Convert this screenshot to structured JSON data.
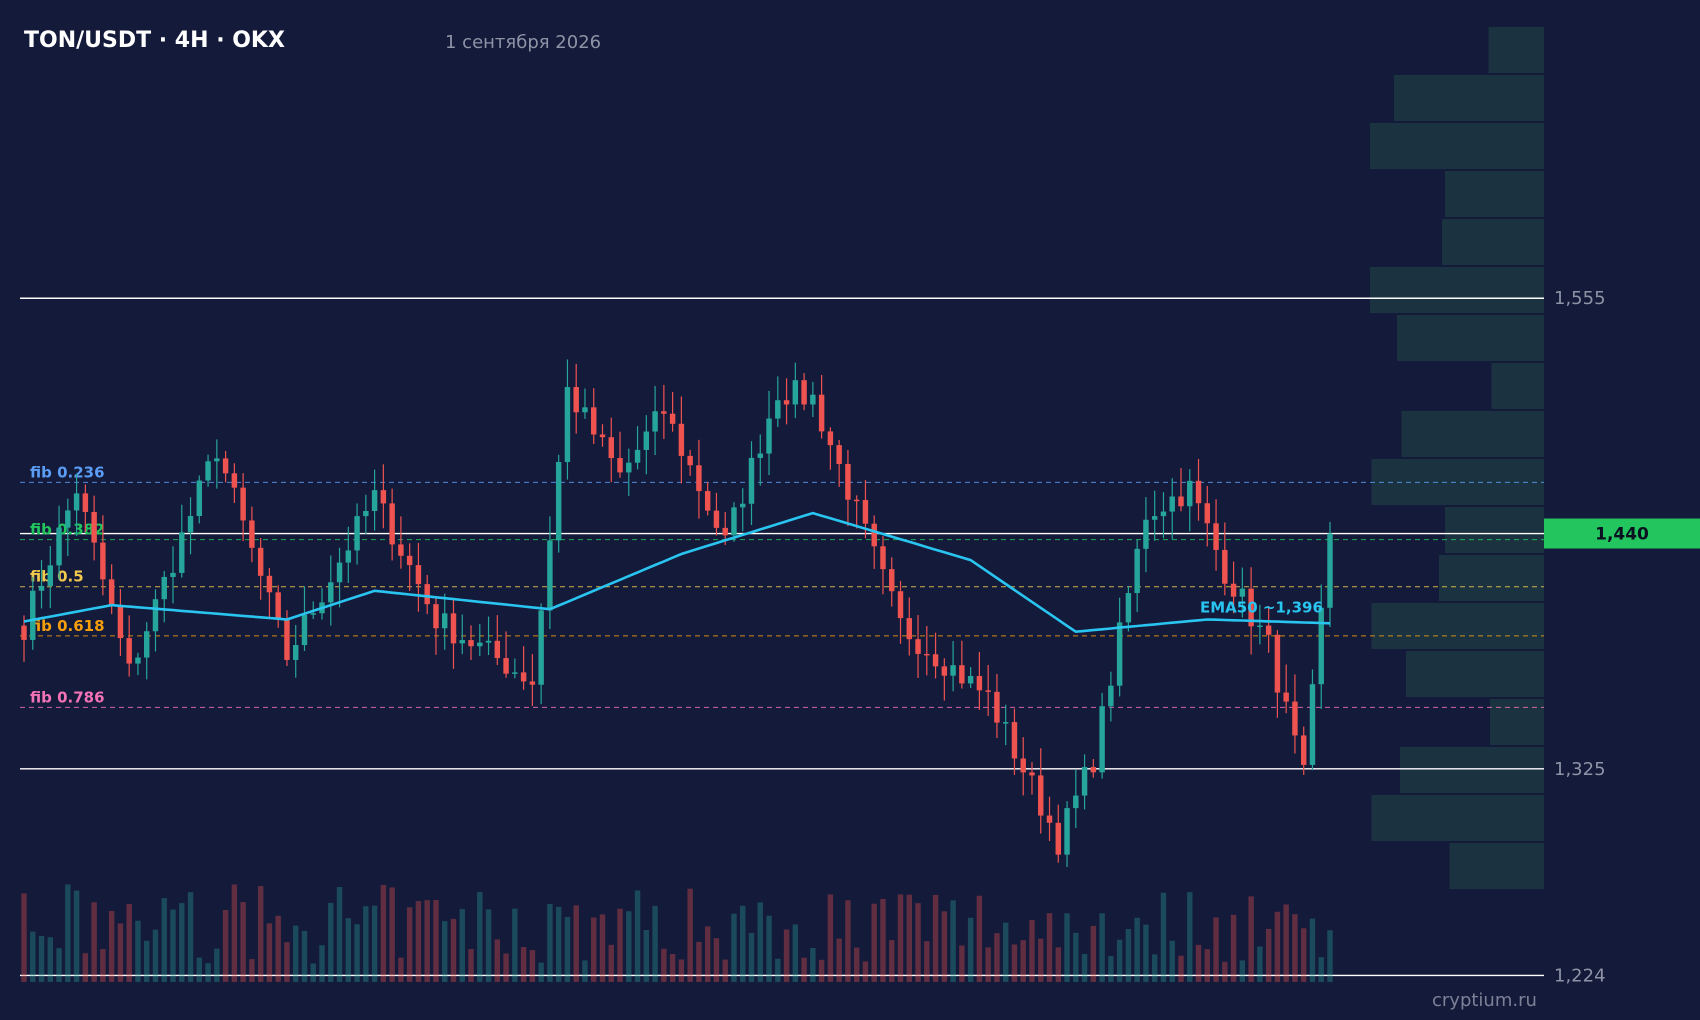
{
  "header": {
    "title": "TON/USDT · 4H · OKX",
    "date": "1 сентября 2026"
  },
  "watermark": "cryptium.ru",
  "colors": {
    "background": "#141a3a",
    "bull": "#26a69a",
    "bear": "#ef5350",
    "ema": "#29c5f0",
    "price_tag": "#22c55e",
    "fib_0236": "#5b9cf5",
    "fib_0382": "#22c55e",
    "fib_05": "#f2c94c",
    "fib_0618": "#f59e0b",
    "fib_0786": "#f472b6",
    "volume_profile": "#1b3340",
    "level_line": "#ffffff"
  },
  "chart_data": {
    "type": "candlestick",
    "title": "TON/USDT · 4H · OKX",
    "subtitle": "1 сентября 2026",
    "y_tick_labels": [
      "1,555",
      "1,325",
      "1,224"
    ],
    "y_ticks": [
      1.555,
      1.325,
      1.224
    ],
    "ylim": [
      1.212,
      1.691
    ],
    "grid": false,
    "current_price": 1.44,
    "current_price_label": "1,440",
    "horizontal_levels": [
      1.555,
      1.44,
      1.325,
      1.224
    ],
    "fib_levels": [
      {
        "label": "fib 0.236",
        "value": 1.465,
        "color_key": "fib_0236"
      },
      {
        "label": "fib 0.382",
        "value": 1.437,
        "color_key": "fib_0382"
      },
      {
        "label": "fib 0.5",
        "value": 1.414,
        "color_key": "fib_05"
      },
      {
        "label": "fib 0.618",
        "value": 1.39,
        "color_key": "fib_0618"
      },
      {
        "label": "fib 0.786",
        "value": 1.355,
        "color_key": "fib_0786"
      }
    ],
    "ema": {
      "label": "EMA50 ~1,396",
      "last_value": 1.396,
      "anchors": [
        [
          0,
          1.397
        ],
        [
          10,
          1.405
        ],
        [
          30,
          1.398
        ],
        [
          40,
          1.412
        ],
        [
          60,
          1.403
        ],
        [
          75,
          1.43
        ],
        [
          90,
          1.45
        ],
        [
          108,
          1.427
        ],
        [
          120,
          1.392
        ],
        [
          135,
          1.398
        ],
        [
          150,
          1.396
        ]
      ]
    },
    "candles": {
      "count": 150,
      "start": 1.395,
      "path": [
        [
          0,
          1.395
        ],
        [
          6,
          1.462
        ],
        [
          12,
          1.372
        ],
        [
          22,
          1.482
        ],
        [
          30,
          1.38
        ],
        [
          40,
          1.458
        ],
        [
          47,
          1.398
        ],
        [
          58,
          1.368
        ],
        [
          62,
          1.51
        ],
        [
          68,
          1.468
        ],
        [
          73,
          1.5
        ],
        [
          80,
          1.435
        ],
        [
          86,
          1.51
        ],
        [
          90,
          1.506
        ],
        [
          100,
          1.395
        ],
        [
          110,
          1.36
        ],
        [
          118,
          1.29
        ],
        [
          122,
          1.33
        ],
        [
          128,
          1.45
        ],
        [
          133,
          1.462
        ],
        [
          137,
          1.422
        ],
        [
          142,
          1.385
        ],
        [
          146,
          1.32
        ],
        [
          149,
          1.44
        ]
      ]
    },
    "volume_profile_rows": 18,
    "volume_profile_widths": [
      0.37,
      1.0,
      1.16,
      0.66,
      0.68,
      1.16,
      0.98,
      0.35,
      0.95,
      1.15,
      0.66,
      0.7,
      1.15,
      0.92,
      0.36,
      0.96,
      1.15,
      0.63
    ]
  }
}
